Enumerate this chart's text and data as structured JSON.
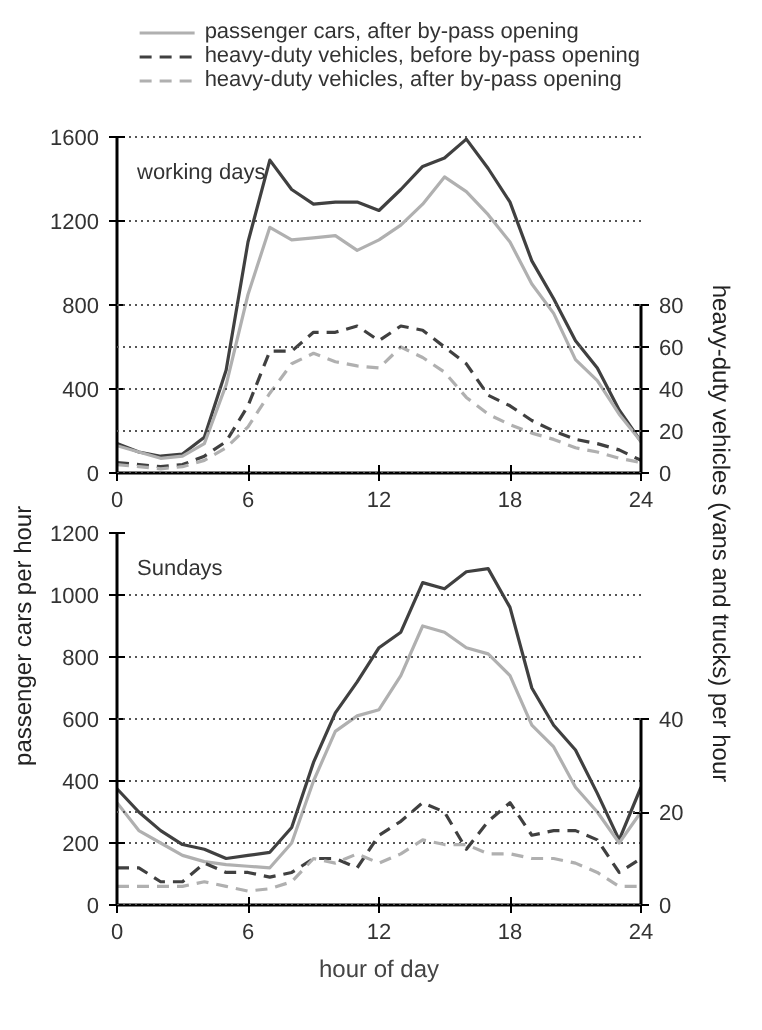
{
  "chart_data": [
    {
      "type": "line",
      "ylabel": "passenger cars per hour",
      "y2label": "heavy-duty vehicles (vans and trucks) per hour",
      "annotations": [
        "working days"
      ],
      "x": [
        0,
        1,
        2,
        3,
        4,
        5,
        6,
        7,
        8,
        9,
        10,
        11,
        12,
        13,
        14,
        15,
        16,
        17,
        18,
        19,
        20,
        21,
        22,
        23,
        24
      ],
      "xlim": [
        0,
        24
      ],
      "xticks": [
        0,
        6,
        12,
        18,
        24
      ],
      "ylim": [
        0,
        1600
      ],
      "yticks": [
        0,
        400,
        800,
        1200,
        1600
      ],
      "y2lim": [
        0,
        160
      ],
      "y2ticks": [
        0,
        20,
        40,
        60,
        80
      ],
      "grid": "y",
      "legend": "top",
      "marker": "none",
      "series": [
        {
          "color": "#404040",
          "line_style": "solid",
          "values": [
            140,
            100,
            80,
            90,
            170,
            490,
            1100,
            1490,
            1350,
            1280,
            1290,
            1290,
            1250,
            1350,
            1460,
            1500,
            1590,
            1450,
            1290,
            1010,
            830,
            630,
            500,
            300,
            150
          ]
        },
        {
          "name": "passenger cars, after by-pass opening",
          "color": "#b0b0b0",
          "line_style": "solid",
          "values": [
            130,
            100,
            70,
            80,
            140,
            420,
            850,
            1170,
            1110,
            1120,
            1130,
            1060,
            1110,
            1180,
            1280,
            1410,
            1340,
            1230,
            1100,
            900,
            760,
            540,
            440,
            280,
            150
          ]
        },
        {
          "name": "heavy-duty vehicles, before by-pass opening",
          "color": "#404040",
          "line_style": "dashed",
          "axis": "y2",
          "values": [
            5,
            4,
            3,
            4,
            8,
            15,
            32,
            58,
            58,
            67,
            67,
            70,
            63,
            70,
            68,
            60,
            52,
            37,
            32,
            25,
            20,
            16,
            14,
            11,
            6
          ]
        },
        {
          "name": "heavy-duty vehicles, after by-pass opening",
          "color": "#b0b0b0",
          "line_style": "dashed",
          "axis": "y2",
          "values": [
            4,
            3,
            2,
            3,
            6,
            12,
            22,
            38,
            52,
            57,
            53,
            51,
            50,
            60,
            55,
            48,
            36,
            28,
            23,
            19,
            16,
            12,
            10,
            7,
            5
          ]
        }
      ]
    },
    {
      "type": "line",
      "xlabel": "hour of day",
      "annotations": [
        "Sundays"
      ],
      "x": [
        0,
        1,
        2,
        3,
        4,
        5,
        6,
        7,
        8,
        9,
        10,
        11,
        12,
        13,
        14,
        15,
        16,
        17,
        18,
        19,
        20,
        21,
        22,
        23,
        24
      ],
      "xlim": [
        0,
        24
      ],
      "xticks": [
        0,
        6,
        12,
        18,
        24
      ],
      "ylim": [
        0,
        1200
      ],
      "yticks": [
        0,
        200,
        400,
        600,
        800,
        1000,
        1200
      ],
      "y2lim": [
        0,
        80
      ],
      "y2ticks": [
        0,
        20,
        40
      ],
      "grid": "y",
      "marker": "none",
      "series": [
        {
          "color": "#404040",
          "line_style": "solid",
          "values": [
            375,
            300,
            240,
            195,
            180,
            150,
            160,
            170,
            250,
            460,
            620,
            720,
            830,
            880,
            1040,
            1020,
            1075,
            1085,
            960,
            700,
            580,
            500,
            360,
            210,
            380
          ]
        },
        {
          "color": "#b0b0b0",
          "line_style": "solid",
          "values": [
            330,
            240,
            200,
            160,
            140,
            130,
            125,
            120,
            200,
            400,
            560,
            610,
            630,
            740,
            900,
            880,
            830,
            810,
            740,
            580,
            510,
            380,
            300,
            200,
            300
          ]
        },
        {
          "color": "#404040",
          "line_style": "dashed",
          "axis": "y2",
          "values": [
            8,
            8,
            5,
            5,
            9,
            7,
            7,
            6,
            7,
            10,
            10,
            8,
            15,
            18,
            22,
            20,
            12,
            18,
            22,
            15,
            16,
            16,
            14,
            7,
            10
          ]
        },
        {
          "color": "#b0b0b0",
          "line_style": "dashed",
          "axis": "y2",
          "values": [
            4,
            4,
            4,
            4,
            5,
            4,
            3,
            3.5,
            5,
            10,
            9,
            11,
            9,
            11,
            14,
            13,
            13,
            11,
            11,
            10,
            10,
            9,
            7,
            4,
            4
          ]
        }
      ]
    }
  ]
}
